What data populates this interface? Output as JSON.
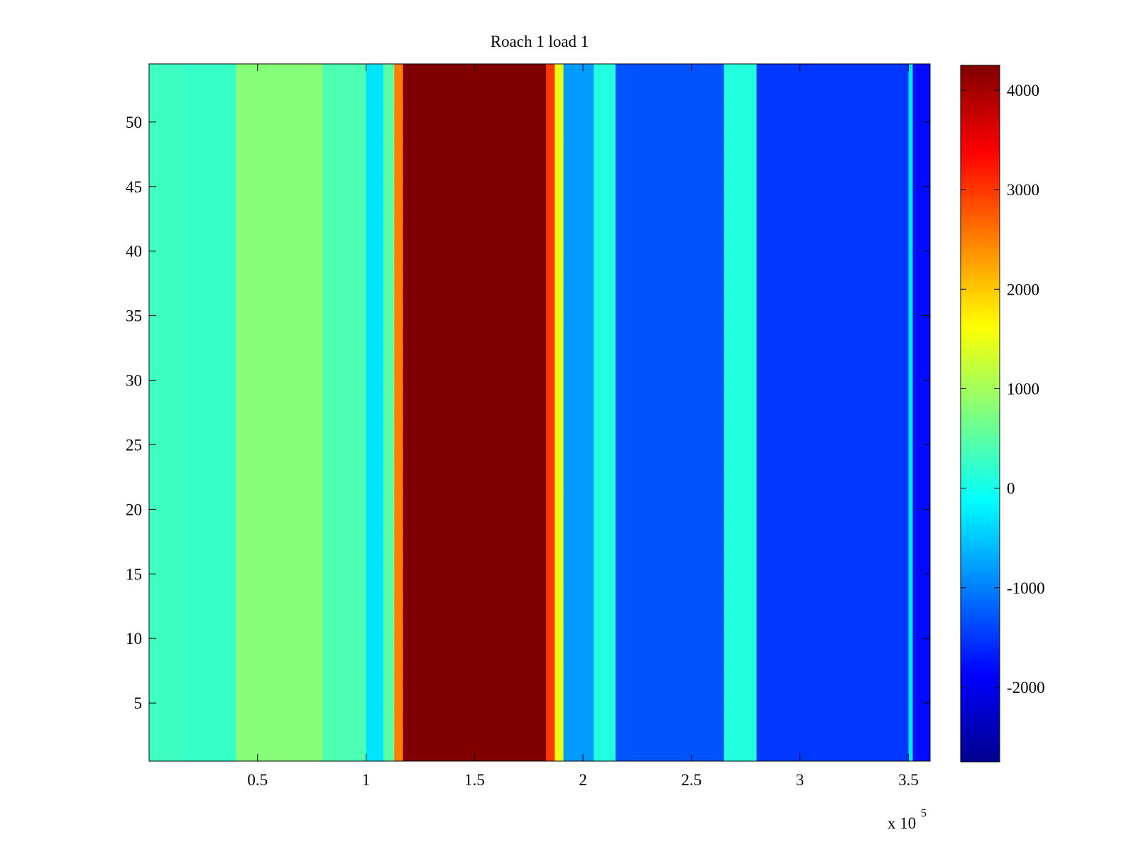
{
  "chart_data": {
    "type": "heatmap",
    "title": "Roach 1 load 1",
    "xlabel": "",
    "ylabel": "",
    "x_multiplier_label": "x 10",
    "x_multiplier_exponent": "5",
    "xlim": [
      0,
      3.6
    ],
    "ylim": [
      0.5,
      54.5
    ],
    "x_ticks": [
      0.5,
      1,
      1.5,
      2,
      2.5,
      3,
      3.5
    ],
    "x_tick_labels": [
      "0.5",
      "1",
      "1.5",
      "2",
      "2.5",
      "3",
      "3.5"
    ],
    "y_ticks": [
      5,
      10,
      15,
      20,
      25,
      30,
      35,
      40,
      45,
      50
    ],
    "y_tick_labels": [
      "5",
      "10",
      "15",
      "20",
      "25",
      "30",
      "35",
      "40",
      "45",
      "50"
    ],
    "rows": 54,
    "colormap": "jet",
    "colorbar": {
      "clim": [
        -2750,
        4250
      ],
      "ticks": [
        -2000,
        -1000,
        0,
        1000,
        2000,
        3000,
        4000
      ],
      "tick_labels": [
        "-2000",
        "-1000",
        "0",
        "1000",
        "2000",
        "3000",
        "4000"
      ],
      "placement": "right"
    },
    "columns": [
      {
        "x": [
          0,
          0.15
        ],
        "value": 300
      },
      {
        "x": [
          0.15,
          0.4
        ],
        "value": 250
      },
      {
        "x": [
          0.4,
          0.8
        ],
        "value": 800
      },
      {
        "x": [
          0.8,
          1.0
        ],
        "value": 400
      },
      {
        "x": [
          1.0,
          1.08
        ],
        "value": -300
      },
      {
        "x": [
          1.08,
          1.13
        ],
        "value": 500
      },
      {
        "x": [
          1.13,
          1.17
        ],
        "value": 2500
      },
      {
        "x": [
          1.17,
          1.83
        ],
        "value": 4250
      },
      {
        "x": [
          1.83,
          1.87
        ],
        "value": 3000
      },
      {
        "x": [
          1.87,
          1.91
        ],
        "value": 1500
      },
      {
        "x": [
          1.91,
          2.05
        ],
        "value": -800
      },
      {
        "x": [
          2.05,
          2.15
        ],
        "value": 100
      },
      {
        "x": [
          2.15,
          2.65
        ],
        "value": -1300
      },
      {
        "x": [
          2.65,
          2.8
        ],
        "value": 100
      },
      {
        "x": [
          2.8,
          3.5
        ],
        "value": -1500
      },
      {
        "x": [
          3.5,
          3.52
        ],
        "value": -300
      },
      {
        "x": [
          3.52,
          3.6
        ],
        "value": -1800
      }
    ]
  }
}
